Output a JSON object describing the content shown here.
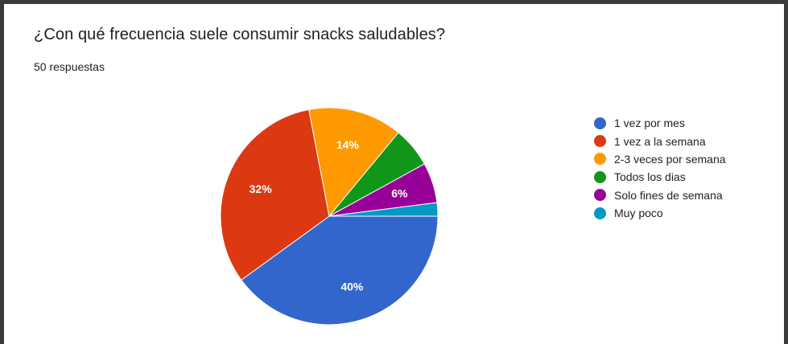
{
  "header": {
    "question": "¿Con qué frecuencia suele consumir snacks saludables?",
    "responses": "50 respuestas"
  },
  "chart_data": {
    "type": "pie",
    "title": "¿Con qué frecuencia suele consumir snacks saludables?",
    "categories": [
      "1 vez por mes",
      "1 vez a la semana",
      "2-3 veces por semana",
      "Todos los dias",
      "Solo fines de semana",
      "Muy poco"
    ],
    "values": [
      40,
      32,
      14,
      6,
      6,
      2
    ],
    "colors": [
      "#3366cc",
      "#dc3912",
      "#ff9900",
      "#109618",
      "#990099",
      "#0099c6"
    ],
    "data_labels": [
      "40%",
      "32%",
      "14%",
      "",
      "6%",
      ""
    ],
    "legend_position": "right"
  }
}
